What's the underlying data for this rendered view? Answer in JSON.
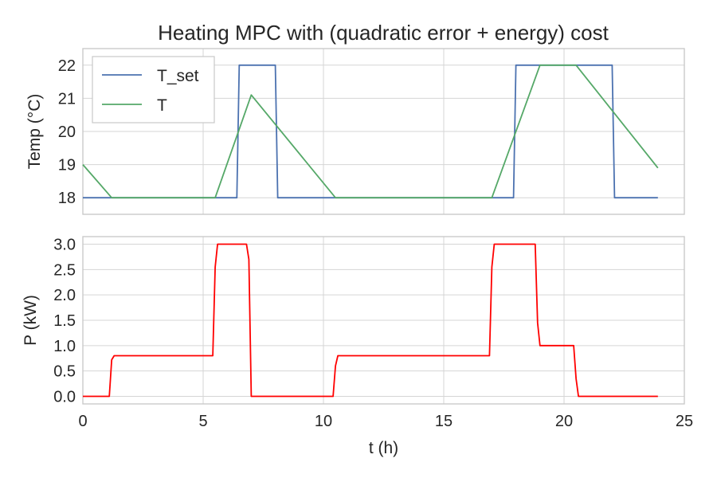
{
  "title": "Heating MPC with (quadratic error + energy) cost",
  "chart_data": [
    {
      "type": "line",
      "ylabel": "Temp (°C)",
      "xlim": [
        0,
        25
      ],
      "ylim": [
        17.5,
        22.5
      ],
      "yticks": [
        18,
        19,
        20,
        21,
        22
      ],
      "xticks": [
        0,
        5,
        10,
        15,
        20,
        25
      ],
      "grid": true,
      "legend_position": "upper-left",
      "series": [
        {
          "name": "T_set",
          "color": "#4c72b0",
          "points": [
            [
              0,
              18
            ],
            [
              6.4,
              18
            ],
            [
              6.5,
              22
            ],
            [
              8.0,
              22
            ],
            [
              8.1,
              18
            ],
            [
              17.9,
              18
            ],
            [
              18.0,
              22
            ],
            [
              22.0,
              22
            ],
            [
              22.1,
              18
            ],
            [
              23.9,
              18
            ]
          ]
        },
        {
          "name": "T",
          "color": "#55a868",
          "points": [
            [
              0,
              19
            ],
            [
              1.2,
              18
            ],
            [
              5.5,
              18
            ],
            [
              7.0,
              21.1
            ],
            [
              10.5,
              18
            ],
            [
              17.0,
              18
            ],
            [
              19.0,
              22
            ],
            [
              20.5,
              22
            ],
            [
              23.9,
              18.9
            ]
          ]
        }
      ]
    },
    {
      "type": "line",
      "xlabel": "t (h)",
      "ylabel": "P (kW)",
      "xlim": [
        0,
        25
      ],
      "ylim": [
        -0.15,
        3.15
      ],
      "yticks": [
        0.0,
        0.5,
        1.0,
        1.5,
        2.0,
        2.5,
        3.0
      ],
      "ytick_labels": [
        "0.0",
        "0.5",
        "1.0",
        "1.5",
        "2.0",
        "2.5",
        "3.0"
      ],
      "xticks": [
        0,
        5,
        10,
        15,
        20,
        25
      ],
      "grid": true,
      "series": [
        {
          "color": "#ff0000",
          "points": [
            [
              0,
              0
            ],
            [
              1.1,
              0
            ],
            [
              1.2,
              0.72
            ],
            [
              1.3,
              0.8
            ],
            [
              5.4,
              0.8
            ],
            [
              5.5,
              2.55
            ],
            [
              5.6,
              3.0
            ],
            [
              6.8,
              3.0
            ],
            [
              6.9,
              2.7
            ],
            [
              7.0,
              0
            ],
            [
              10.4,
              0
            ],
            [
              10.5,
              0.6
            ],
            [
              10.6,
              0.8
            ],
            [
              16.9,
              0.8
            ],
            [
              17.0,
              2.55
            ],
            [
              17.1,
              3.0
            ],
            [
              18.8,
              3.0
            ],
            [
              18.9,
              1.45
            ],
            [
              19.0,
              1.0
            ],
            [
              20.4,
              1.0
            ],
            [
              20.5,
              0.35
            ],
            [
              20.6,
              0
            ],
            [
              23.9,
              0
            ]
          ]
        }
      ]
    }
  ]
}
